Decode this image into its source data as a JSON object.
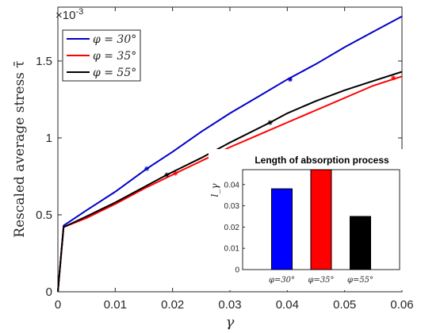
{
  "chart_data": [
    {
      "type": "line",
      "title": "",
      "xlabel": "γ",
      "ylabel": "Rescaled average stress τ̄",
      "exponent_label": "×10",
      "exponent_power": "-3",
      "xlim": [
        0,
        0.06
      ],
      "ylim": [
        0,
        0.00185
      ],
      "x_ticks": [
        "0",
        "0.01",
        "0.02",
        "0.03",
        "0.04",
        "0.05",
        "0.06"
      ],
      "y_ticks": [
        "0",
        "0.5",
        "1",
        "1.5"
      ],
      "grid": false,
      "legend_placement": "top-left",
      "series": [
        {
          "name": "φ = 30°",
          "color": "#0000c8",
          "points": [
            [
              0,
              0
            ],
            [
              0.001,
              0.00043
            ],
            [
              0.005,
              0.00053
            ],
            [
              0.01,
              0.00065
            ],
            [
              0.0155,
              0.0008
            ],
            [
              0.02,
              0.00091
            ],
            [
              0.025,
              0.00104
            ],
            [
              0.03,
              0.00116
            ],
            [
              0.035,
              0.00127
            ],
            [
              0.04,
              0.00138
            ],
            [
              0.045,
              0.00148
            ],
            [
              0.05,
              0.00159
            ],
            [
              0.055,
              0.00169
            ],
            [
              0.06,
              0.00179
            ]
          ],
          "markers": [
            [
              0.0155,
              0.0008
            ],
            [
              0.0405,
              0.00138
            ]
          ]
        },
        {
          "name": "φ = 35°",
          "color": "#ff0000",
          "points": [
            [
              0,
              0
            ],
            [
              0.001,
              0.00042
            ],
            [
              0.005,
              0.00048
            ],
            [
              0.01,
              0.00057
            ],
            [
              0.015,
              0.00067
            ],
            [
              0.0205,
              0.00077
            ],
            [
              0.025,
              0.00085
            ],
            [
              0.03,
              0.00094
            ],
            [
              0.035,
              0.00102
            ],
            [
              0.04,
              0.0011
            ],
            [
              0.045,
              0.00118
            ],
            [
              0.05,
              0.00126
            ],
            [
              0.055,
              0.00134
            ],
            [
              0.06,
              0.0014
            ]
          ],
          "markers": [
            [
              0.0205,
              0.00077
            ],
            [
              0.0585,
              0.00139
            ]
          ]
        },
        {
          "name": "φ = 55°",
          "color": "#000000",
          "points": [
            [
              0,
              0
            ],
            [
              0.001,
              0.00042
            ],
            [
              0.005,
              0.00049
            ],
            [
              0.01,
              0.00058
            ],
            [
              0.015,
              0.00068
            ],
            [
              0.019,
              0.00076
            ],
            [
              0.025,
              0.00087
            ],
            [
              0.03,
              0.00097
            ],
            [
              0.037,
              0.0011
            ],
            [
              0.04,
              0.00116
            ],
            [
              0.045,
              0.00124
            ],
            [
              0.05,
              0.00131
            ],
            [
              0.055,
              0.00137
            ],
            [
              0.06,
              0.00143
            ]
          ],
          "markers": [
            [
              0.019,
              0.00076
            ],
            [
              0.037,
              0.0011
            ]
          ]
        }
      ]
    },
    {
      "type": "bar",
      "title": "Length of absorption process",
      "ylabel": "l_γ",
      "ylim": [
        0,
        0.047
      ],
      "y_ticks": [
        "0",
        "0.01",
        "0.02",
        "0.03",
        "0.04"
      ],
      "categories": [
        "φ=30°",
        "φ=35°",
        "φ=55°"
      ],
      "values": [
        0.038,
        0.047,
        0.025
      ],
      "colors": [
        "#0000ff",
        "#ff0000",
        "#000000"
      ]
    }
  ]
}
